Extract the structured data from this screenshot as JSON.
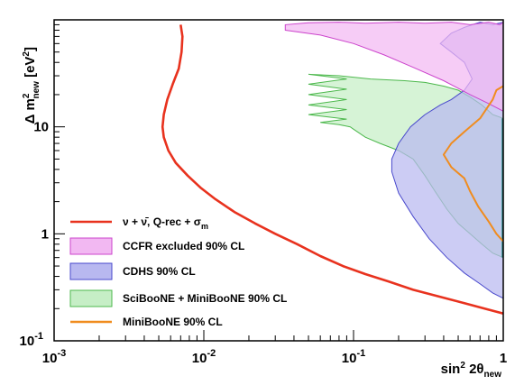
{
  "chart_data": {
    "type": "area",
    "x_scale": "log",
    "y_scale": "log",
    "xlim": [
      0.001,
      1
    ],
    "ylim": [
      0.1,
      100
    ],
    "grid": false,
    "legend_placement": "bottom-left",
    "xlabel": "sin² 2θnew",
    "ylabel": "Δ m²new [eV²]",
    "x_tick_labels": [
      {
        "value": 0.001,
        "base": "10",
        "exp": "-3"
      },
      {
        "value": 0.01,
        "base": "10",
        "exp": "-2"
      },
      {
        "value": 0.1,
        "base": "10",
        "exp": "-1"
      },
      {
        "value": 1,
        "base": "1",
        "exp": ""
      }
    ],
    "y_tick_labels": [
      {
        "value": 0.1,
        "base": "10",
        "exp": "-1"
      },
      {
        "value": 1,
        "base": "1",
        "exp": ""
      },
      {
        "value": 10,
        "base": "10",
        "exp": ""
      }
    ],
    "series": [
      {
        "name": "CCFR excluded 90% CL",
        "kind": "region",
        "fill": "#f2b8f2",
        "stroke": "#cc44cc",
        "boundary": [
          [
            0.035,
            80
          ],
          [
            0.06,
            72
          ],
          [
            0.1,
            60
          ],
          [
            0.16,
            47
          ],
          [
            0.25,
            36
          ],
          [
            0.4,
            27
          ],
          [
            0.6,
            20
          ],
          [
            0.8,
            16.5
          ],
          [
            1.0,
            14
          ],
          [
            1.0,
            95
          ],
          [
            0.95,
            90
          ],
          [
            0.8,
            95
          ],
          [
            0.6,
            90
          ],
          [
            0.45,
            95
          ],
          [
            0.3,
            93
          ],
          [
            0.2,
            95
          ],
          [
            0.12,
            93
          ],
          [
            0.08,
            95
          ],
          [
            0.05,
            94
          ],
          [
            0.035,
            90
          ]
        ]
      },
      {
        "name": "CDHS 90% CL",
        "kind": "region",
        "fill": "#b8b8f0",
        "stroke": "#4848cc",
        "boundary": [
          [
            0.18,
            3.8
          ],
          [
            0.2,
            2.4
          ],
          [
            0.25,
            1.45
          ],
          [
            0.32,
            0.9
          ],
          [
            0.42,
            0.6
          ],
          [
            0.55,
            0.43
          ],
          [
            0.7,
            0.34
          ],
          [
            0.85,
            0.28
          ],
          [
            1.0,
            0.25
          ],
          [
            1.0,
            95
          ],
          [
            0.85,
            90
          ],
          [
            0.7,
            95
          ],
          [
            0.55,
            85
          ],
          [
            0.45,
            75
          ],
          [
            0.38,
            60
          ],
          [
            0.45,
            50
          ],
          [
            0.55,
            40
          ],
          [
            0.62,
            28
          ],
          [
            0.55,
            22
          ],
          [
            0.45,
            18
          ],
          [
            0.38,
            16
          ],
          [
            0.3,
            13
          ],
          [
            0.24,
            10
          ],
          [
            0.2,
            7
          ],
          [
            0.18,
            5
          ]
        ]
      },
      {
        "name": "SciBooNE + MiniBooNE 90% CL",
        "kind": "region",
        "fill": "#c6eec6",
        "stroke": "#4cb84c",
        "boundary": [
          [
            0.3,
            3.5
          ],
          [
            0.35,
            2.5
          ],
          [
            0.42,
            1.7
          ],
          [
            0.5,
            1.25
          ],
          [
            0.6,
            1.0
          ],
          [
            0.72,
            0.8
          ],
          [
            0.85,
            0.66
          ],
          [
            1.0,
            0.6
          ],
          [
            1.0,
            12
          ],
          [
            0.85,
            13
          ],
          [
            0.72,
            16
          ],
          [
            0.6,
            19
          ],
          [
            0.5,
            22
          ],
          [
            0.4,
            24
          ],
          [
            0.3,
            26
          ],
          [
            0.22,
            27
          ],
          [
            0.13,
            28
          ],
          [
            0.08,
            30
          ],
          [
            0.05,
            31
          ],
          [
            0.09,
            28
          ],
          [
            0.05,
            25
          ],
          [
            0.09,
            22.5
          ],
          [
            0.05,
            20
          ],
          [
            0.09,
            18
          ],
          [
            0.05,
            16
          ],
          [
            0.09,
            14.5
          ],
          [
            0.05,
            13
          ],
          [
            0.09,
            11.8
          ],
          [
            0.06,
            11
          ],
          [
            0.08,
            10.5
          ],
          [
            0.095,
            10
          ],
          [
            0.1,
            9.5
          ],
          [
            0.12,
            8
          ],
          [
            0.15,
            7
          ],
          [
            0.2,
            6
          ],
          [
            0.25,
            5
          ]
        ]
      },
      {
        "name": "MiniBooNE 90% CL",
        "kind": "line",
        "color": "#f08c1e",
        "points": [
          [
            1.0,
            24
          ],
          [
            0.9,
            22
          ],
          [
            0.85,
            18
          ],
          [
            0.7,
            12
          ],
          [
            0.55,
            9
          ],
          [
            0.45,
            7
          ],
          [
            0.4,
            5.5
          ],
          [
            0.45,
            4.2
          ],
          [
            0.55,
            3.3
          ],
          [
            0.6,
            2.5
          ],
          [
            0.68,
            1.8
          ],
          [
            0.8,
            1.3
          ],
          [
            0.9,
            1.0
          ],
          [
            1.0,
            0.85
          ]
        ]
      },
      {
        "name": "ν+ν̄, Q-rec + σm",
        "kind": "line",
        "color": "#e8321e",
        "points": [
          [
            0.007,
            90
          ],
          [
            0.0072,
            70
          ],
          [
            0.0071,
            50
          ],
          [
            0.0068,
            35
          ],
          [
            0.0062,
            25
          ],
          [
            0.0057,
            18
          ],
          [
            0.0054,
            13
          ],
          [
            0.0053,
            10
          ],
          [
            0.0054,
            8
          ],
          [
            0.0058,
            6
          ],
          [
            0.0065,
            4.6
          ],
          [
            0.0078,
            3.5
          ],
          [
            0.0095,
            2.7
          ],
          [
            0.012,
            2.1
          ],
          [
            0.016,
            1.6
          ],
          [
            0.022,
            1.25
          ],
          [
            0.03,
            1.0
          ],
          [
            0.042,
            0.8
          ],
          [
            0.06,
            0.62
          ],
          [
            0.085,
            0.5
          ],
          [
            0.12,
            0.42
          ],
          [
            0.17,
            0.36
          ],
          [
            0.25,
            0.3
          ],
          [
            0.37,
            0.26
          ],
          [
            0.55,
            0.225
          ],
          [
            0.75,
            0.2
          ],
          [
            1.0,
            0.18
          ]
        ]
      }
    ],
    "legend": [
      {
        "label_main": "ν + ν̄, Q-rec + σ",
        "label_sub": "m",
        "style": "line",
        "color": "#e8321e"
      },
      {
        "label_main": "CCFR excluded 90% CL",
        "style": "box",
        "fill": "#f2b8f2",
        "stroke": "#cc44cc"
      },
      {
        "label_main": "CDHS 90% CL",
        "style": "box",
        "fill": "#b8b8f0",
        "stroke": "#4848cc"
      },
      {
        "label_main": "SciBooNE + MiniBooNE 90% CL",
        "style": "box",
        "fill": "#c6eec6",
        "stroke": "#4cb84c"
      },
      {
        "label_main": "MiniBooNE 90% CL",
        "style": "line",
        "color": "#f08c1e"
      }
    ],
    "overlap_colors": {
      "ccfr_cdhs": "#b89ee0",
      "cdhs_sciboone": "#98cfc2",
      "all_three": "#a6a6c4"
    }
  }
}
